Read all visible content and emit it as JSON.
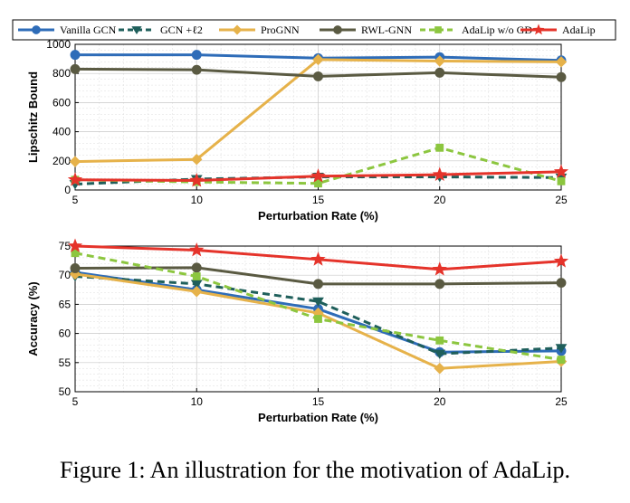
{
  "caption": "Figure 1: An illustration for the motivation of AdaLip.",
  "legend": [
    {
      "name": "Vanilla GCN",
      "color": "#2e6cb8",
      "marker": "circle",
      "dash": "solid"
    },
    {
      "name": "GCN +ℓ2",
      "color": "#1f5f5b",
      "marker": "triangle-down",
      "dash": "dashed"
    },
    {
      "name": "ProGNN",
      "color": "#e6b24a",
      "marker": "diamond",
      "dash": "solid"
    },
    {
      "name": "RWL-GNN",
      "color": "#5a5a42",
      "marker": "circle",
      "dash": "solid"
    },
    {
      "name": "AdaLip w/o GD",
      "color": "#8cc63f",
      "marker": "square",
      "dash": "dashed"
    },
    {
      "name": "AdaLip",
      "color": "#e5332a",
      "marker": "star",
      "dash": "solid"
    }
  ],
  "chart_data": [
    {
      "type": "line",
      "xlabel": "Perturbation Rate (%)",
      "ylabel": "Lipschitz Bound",
      "x": [
        5,
        10,
        15,
        20,
        25
      ],
      "xlim": [
        5,
        25
      ],
      "ylim": [
        0,
        1000
      ],
      "xticks": [
        "5",
        "10",
        "15",
        "20",
        "25"
      ],
      "yticks": [
        0,
        200,
        400,
        600,
        800,
        1000
      ],
      "grid": true,
      "series": [
        {
          "name": "Vanilla GCN",
          "values": [
            928,
            928,
            905,
            912,
            890
          ]
        },
        {
          "name": "GCN +ℓ2",
          "values": [
            40,
            75,
            90,
            90,
            85
          ]
        },
        {
          "name": "ProGNN",
          "values": [
            195,
            210,
            895,
            885,
            880
          ]
        },
        {
          "name": "RWL-GNN",
          "values": [
            830,
            825,
            780,
            805,
            775
          ]
        },
        {
          "name": "AdaLip w/o GD",
          "values": [
            70,
            55,
            45,
            290,
            60
          ]
        },
        {
          "name": "AdaLip",
          "values": [
            70,
            65,
            95,
            105,
            125
          ]
        }
      ]
    },
    {
      "type": "line",
      "xlabel": "Perturbation Rate (%)",
      "ylabel": "Accuracy (%)",
      "x": [
        5,
        10,
        15,
        20,
        25
      ],
      "xlim": [
        5,
        25
      ],
      "ylim": [
        50,
        75
      ],
      "xticks": [
        "5",
        "10",
        "15",
        "20",
        "25"
      ],
      "yticks": [
        50,
        55,
        60,
        65,
        70,
        75
      ],
      "grid": true,
      "series": [
        {
          "name": "Vanilla GCN",
          "values": [
            70.5,
            67.5,
            64.2,
            56.8,
            57.0
          ]
        },
        {
          "name": "GCN +ℓ2",
          "values": [
            69.8,
            68.5,
            65.5,
            56.5,
            57.5
          ]
        },
        {
          "name": "ProGNN",
          "values": [
            70.2,
            67.2,
            63.5,
            54.0,
            55.2
          ]
        },
        {
          "name": "RWL-GNN",
          "values": [
            71.2,
            71.3,
            68.5,
            68.5,
            68.7
          ]
        },
        {
          "name": "AdaLip w/o GD",
          "values": [
            73.8,
            69.8,
            62.5,
            58.8,
            55.5
          ]
        },
        {
          "name": "AdaLip",
          "values": [
            75.0,
            74.3,
            72.7,
            71.0,
            72.4
          ]
        }
      ]
    }
  ]
}
